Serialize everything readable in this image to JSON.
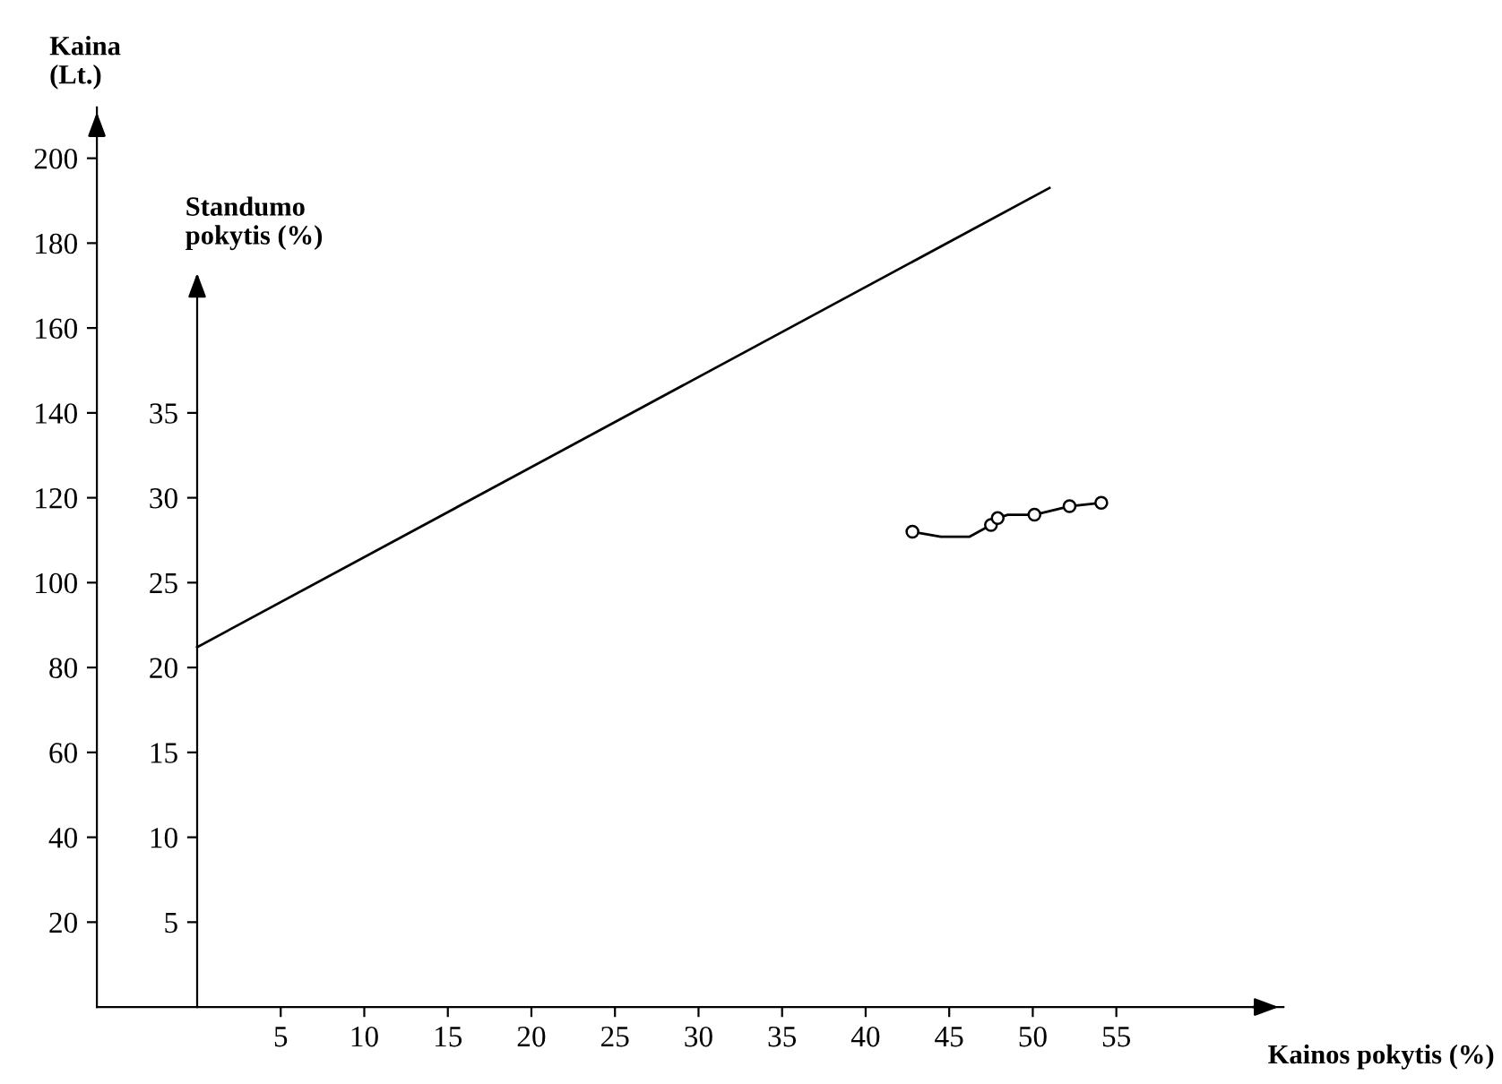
{
  "chart_data": {
    "type": "line",
    "xlabel": "Kainos pokytis (%)",
    "ylabel": "Kaina (Lt.)",
    "y2label": "Standumo pokytis (%)",
    "xlim": [
      -6,
      65
    ],
    "xticks": [
      5,
      10,
      15,
      20,
      25,
      30,
      35,
      40,
      45,
      50,
      55
    ],
    "ylim": [
      0,
      212
    ],
    "yticks": [
      20,
      40,
      60,
      80,
      100,
      120,
      140,
      160,
      180,
      200
    ],
    "y2lim": [
      0,
      53
    ],
    "y2ticks": [
      5,
      10,
      15,
      20,
      25,
      30,
      35
    ],
    "grid": false,
    "legend": false,
    "series": [
      {
        "color": "#000000",
        "x": [
          0,
          51
        ],
        "values": [
          84.8,
          193
        ],
        "marker": "none"
      },
      {
        "axis": "y2",
        "color": "#000000",
        "x": [
          42.8,
          44.5,
          46.2,
          47.5,
          47.9,
          48.5,
          50.1,
          52.2,
          54.1
        ],
        "values": [
          28.0,
          27.7,
          27.7,
          28.4,
          28.8,
          29.0,
          29.0,
          29.5,
          29.7
        ],
        "marker": "none"
      },
      {
        "type": "scatter",
        "axis": "y2",
        "color": "#000000",
        "x": [
          42.8,
          47.5,
          47.9,
          50.1,
          52.2,
          54.1
        ],
        "values": [
          28.0,
          28.4,
          28.8,
          29.0,
          29.5,
          29.7
        ],
        "marker": "circle"
      }
    ]
  }
}
